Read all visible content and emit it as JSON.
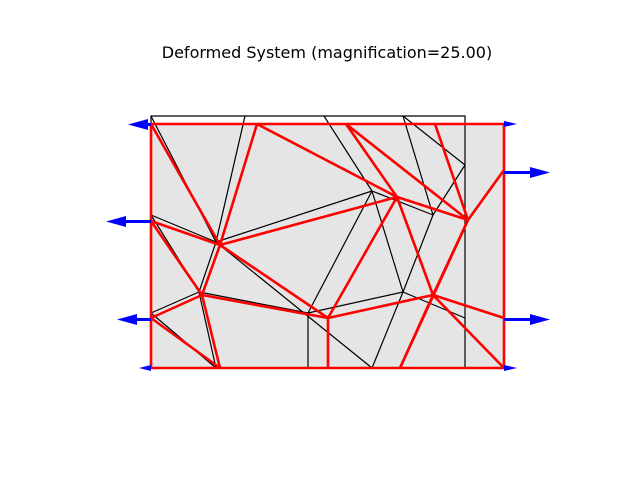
{
  "figure": {
    "title": "Deformed System (magnification=25.00)"
  },
  "colors": {
    "background": "#ffffff",
    "mesh_fill": "#e5e5e5",
    "undeformed_edge": "#000000",
    "deformed_edge": "#ff0000",
    "force_arrow": "#0000ff"
  }
}
